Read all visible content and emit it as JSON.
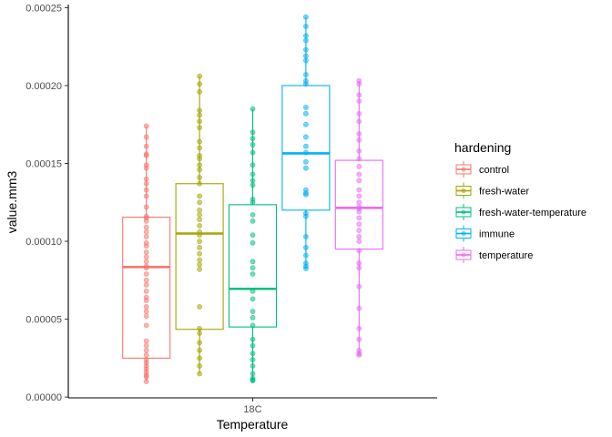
{
  "chart_data": {
    "type": "boxplot",
    "xlabel": "Temperature",
    "ylabel": "value.mm3",
    "categories": [
      "18C"
    ],
    "ylim": [
      -5e-07,
      0.000252
    ],
    "yticks": [
      0,
      5e-05,
      0.0001,
      0.00015,
      0.0002,
      0.00025
    ],
    "ytick_labels": [
      "0.00000",
      "0.00005",
      "0.00010",
      "0.00015",
      "0.00020",
      "0.00025"
    ],
    "grid": false,
    "legend": {
      "title": "hardening",
      "position": "right"
    },
    "series": [
      {
        "name": "control",
        "color": "#F8766D",
        "box": {
          "whisker_low": 1e-05,
          "q1": 2.5e-05,
          "median": 8.35e-05,
          "q3": 0.0001155,
          "whisker_high": 0.000174
        },
        "points": [
          0.000174,
          0.000167,
          0.000161,
          0.000156,
          0.000155,
          0.000149,
          0.000147,
          0.00014,
          0.000137,
          0.000133,
          0.000129,
          0.000122,
          0.000116,
          0.000115,
          0.000113,
          0.000109,
          0.000106,
          0.000103,
          9.9e-05,
          9.7e-05,
          9.3e-05,
          9e-05,
          8.7e-05,
          8.4e-05,
          8.3e-05,
          7.9e-05,
          7.5e-05,
          7.2e-05,
          6.8e-05,
          6.4e-05,
          6.2e-05,
          5.8e-05,
          5.5e-05,
          5.2e-05,
          4.6e-05,
          3.6e-05,
          3.3e-05,
          3e-05,
          2.7e-05,
          2.4e-05,
          2.2e-05,
          2e-05,
          1.8e-05,
          1.6e-05,
          1.4e-05,
          1.3e-05,
          1e-05
        ]
      },
      {
        "name": "fresh-water",
        "color": "#A3A500",
        "box": {
          "whisker_low": 1.5e-05,
          "q1": 4.35e-05,
          "median": 0.000105,
          "q3": 0.000137,
          "whisker_high": 0.000206
        },
        "points": [
          0.000206,
          0.000201,
          0.000196,
          0.000184,
          0.000181,
          0.000177,
          0.000173,
          0.000164,
          0.00016,
          0.000155,
          0.000153,
          0.000149,
          0.000146,
          0.000141,
          0.000137,
          0.000129,
          0.000125,
          0.00012,
          0.000117,
          0.000114,
          0.00011,
          0.000106,
          0.000104,
          0.0001,
          9.6e-05,
          9.2e-05,
          8.8e-05,
          8.5e-05,
          8.2e-05,
          5.8e-05,
          4.4e-05,
          4.1e-05,
          3.5e-05,
          3e-05,
          2.5e-05,
          2e-05,
          1.5e-05
        ]
      },
      {
        "name": "fresh-water-temperature",
        "color": "#00BF7D",
        "box": {
          "whisker_low": 1.05e-05,
          "q1": 4.5e-05,
          "median": 6.95e-05,
          "q3": 0.0001235,
          "whisker_high": 0.000185
        },
        "points": [
          0.000185,
          0.00017,
          0.000166,
          0.000162,
          0.000157,
          0.000149,
          0.000143,
          0.000139,
          0.000136,
          0.000127,
          0.000125,
          0.000117,
          0.000113,
          0.000104,
          9.9e-05,
          8.7e-05,
          8.3e-05,
          7.9e-05,
          6.8e-05,
          6.3e-05,
          5.5e-05,
          5.1e-05,
          4.6e-05,
          3.7e-05,
          3.3e-05,
          2.8e-05,
          2.4e-05,
          2e-05,
          1.5e-05,
          1.2e-05,
          1.1e-05,
          1.05e-05
        ]
      },
      {
        "name": "immune",
        "color": "#00B0F6",
        "box": {
          "whisker_low": 8.25e-05,
          "q1": 0.00012,
          "median": 0.0001565,
          "q3": 0.0002,
          "whisker_high": 0.000244
        },
        "points": [
          0.000244,
          0.000238,
          0.000232,
          0.000229,
          0.000223,
          0.000219,
          0.000216,
          0.000207,
          0.000203,
          0.000201,
          0.000186,
          0.000182,
          0.000175,
          0.000167,
          0.000161,
          0.000157,
          0.000151,
          0.000147,
          0.000133,
          0.000131,
          0.00013,
          0.000118,
          0.000116,
          0.000103,
          9.6e-05,
          9.1e-05,
          8.6e-05,
          8.4e-05,
          8.25e-05
        ]
      },
      {
        "name": "temperature",
        "color": "#E76BF3",
        "box": {
          "whisker_low": 2.7e-05,
          "q1": 9.5e-05,
          "median": 0.0001215,
          "q3": 0.000152,
          "whisker_high": 0.000203
        },
        "points": [
          0.000203,
          0.000201,
          0.000194,
          0.00019,
          0.000182,
          0.000177,
          0.000169,
          0.000165,
          0.000158,
          0.000153,
          0.000148,
          0.000143,
          0.000139,
          0.000133,
          0.000129,
          0.000125,
          0.000122,
          0.000121,
          0.000119,
          0.000115,
          0.000111,
          0.000107,
          0.000103,
          0.0001,
          9.4e-05,
          8.6e-05,
          8.3e-05,
          7.1e-05,
          5.7e-05,
          4.4e-05,
          3.7e-05,
          3e-05,
          2.8e-05,
          2.7e-05
        ]
      }
    ]
  }
}
